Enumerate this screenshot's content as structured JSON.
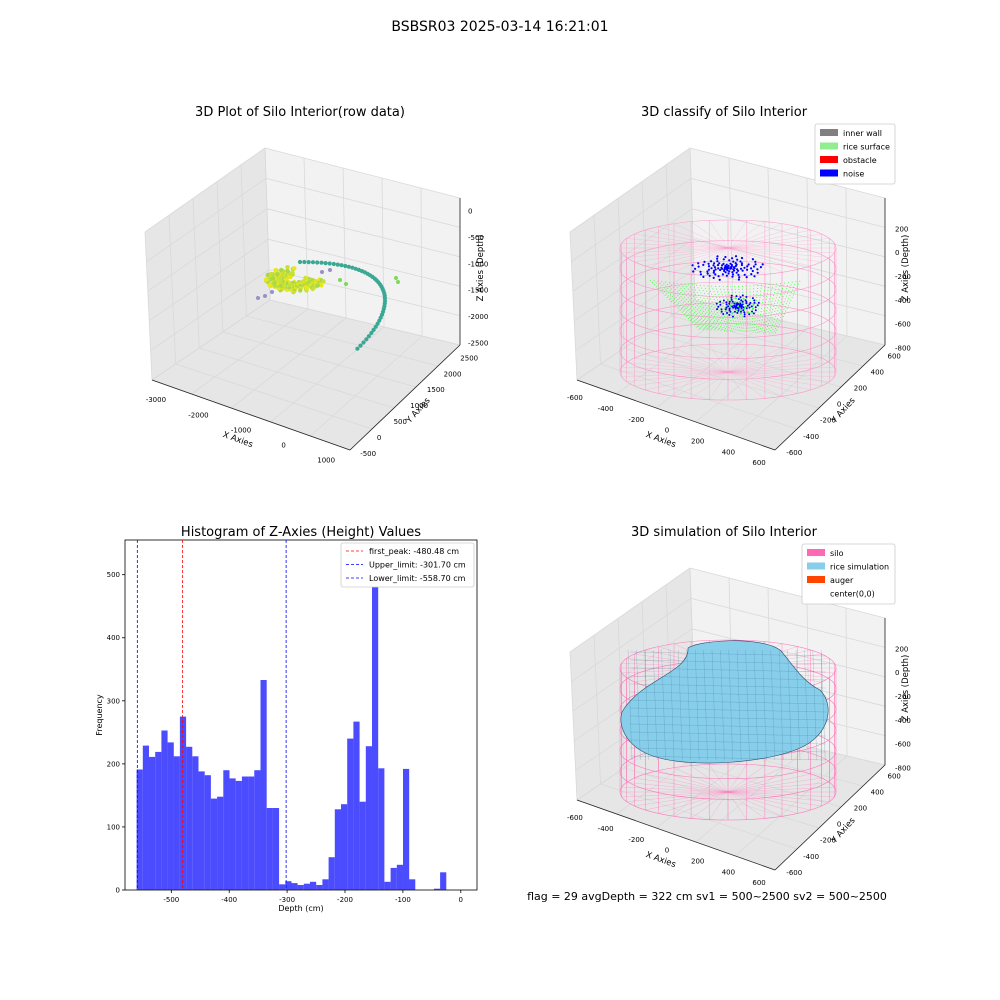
{
  "figure": {
    "suptitle": "BSBSR03 2025-03-14 16:21:01",
    "footer": "flag = 29  avgDepth = 322 cm  sv1 = 500~2500  sv2 = 500~2500"
  },
  "chart_data": [
    {
      "type": "scatter",
      "title": "3D Plot of Silo Interior(row data)",
      "xlabel": "X Axies",
      "ylabel": "Y Axies",
      "zlabel": "Z Axies (Depth)",
      "x_ticks": [
        "-3000",
        "-2000",
        "-1000",
        "0",
        "1000"
      ],
      "y_ticks": [
        "-500",
        "0",
        "500",
        "1000",
        "1500",
        "2000",
        "2500"
      ],
      "z_ticks": [
        "0",
        "-500",
        "-1000",
        "-1500",
        "-2000",
        "-2500"
      ],
      "grid": true
    },
    {
      "type": "scatter",
      "title": "3D classify of Silo Interior",
      "xlabel": "X Axies",
      "ylabel": "Y Axies",
      "zlabel": "Z Axies (Depth)",
      "x_ticks": [
        "-600",
        "-400",
        "-200",
        "0",
        "200",
        "400",
        "600"
      ],
      "y_ticks": [
        "-600",
        "-400",
        "-200",
        "0",
        "200",
        "400",
        "600"
      ],
      "z_ticks": [
        "200",
        "0",
        "-200",
        "-400",
        "-600",
        "-800"
      ],
      "legend": [
        {
          "label": "inner wall",
          "color": "#808080"
        },
        {
          "label": "rice surface",
          "color": "#90ee90"
        },
        {
          "label": "obstacle",
          "color": "#ff0000"
        },
        {
          "label": "noise",
          "color": "#0000ff"
        }
      ],
      "legend_position": "top-right",
      "grid": true
    },
    {
      "type": "bar",
      "title": "Histogram of Z-Axies (Height) Values",
      "xlabel": "Depth (cm)",
      "ylabel": "Frequency",
      "xlim": [
        -580,
        28
      ],
      "ylim": [
        0,
        555
      ],
      "x_ticks": [
        "-500",
        "-400",
        "-300",
        "-200",
        "-100",
        "0"
      ],
      "y_ticks": [
        "0",
        "100",
        "200",
        "300",
        "400",
        "500"
      ],
      "bin_start": -560,
      "bin_width": 10.7,
      "values": [
        191,
        229,
        211,
        219,
        253,
        234,
        212,
        275,
        227,
        212,
        188,
        182,
        145,
        148,
        190,
        177,
        173,
        180,
        180,
        190,
        333,
        130,
        130,
        9,
        14,
        11,
        8,
        10,
        13,
        8,
        17,
        52,
        128,
        136,
        240,
        267,
        140,
        228,
        525,
        193,
        13,
        35,
        40,
        192,
        17,
        0,
        0,
        0,
        2,
        28
      ],
      "color": "#0000ff",
      "vlines": [
        {
          "label": "first_peak: -480.48 cm",
          "x": -480.48,
          "color": "#ff0000"
        },
        {
          "label": "Upper_limit: -301.70 cm",
          "x": -301.7,
          "color": "#0000ff"
        },
        {
          "label": "Lower_limit: -558.70 cm",
          "x": -558.7,
          "color": "#0000ff"
        }
      ],
      "legend_position": "top-right"
    },
    {
      "type": "other",
      "title": "3D simulation of Silo Interior",
      "xlabel": "X Axies",
      "ylabel": "Y Axies",
      "zlabel": "Z Axies (Depth)",
      "x_ticks": [
        "-600",
        "-400",
        "-200",
        "0",
        "200",
        "400",
        "600"
      ],
      "y_ticks": [
        "-600",
        "-400",
        "-200",
        "0",
        "200",
        "400",
        "600"
      ],
      "z_ticks": [
        "200",
        "0",
        "-200",
        "-400",
        "-600",
        "-800"
      ],
      "legend": [
        {
          "label": "silo",
          "color": "#ff69b4"
        },
        {
          "label": "rice simulation",
          "color": "#87ceeb"
        },
        {
          "label": "auger",
          "color": "#ff4500"
        },
        {
          "label": "center(0,0)",
          "color": ""
        }
      ],
      "legend_position": "top-right",
      "grid": true
    }
  ]
}
